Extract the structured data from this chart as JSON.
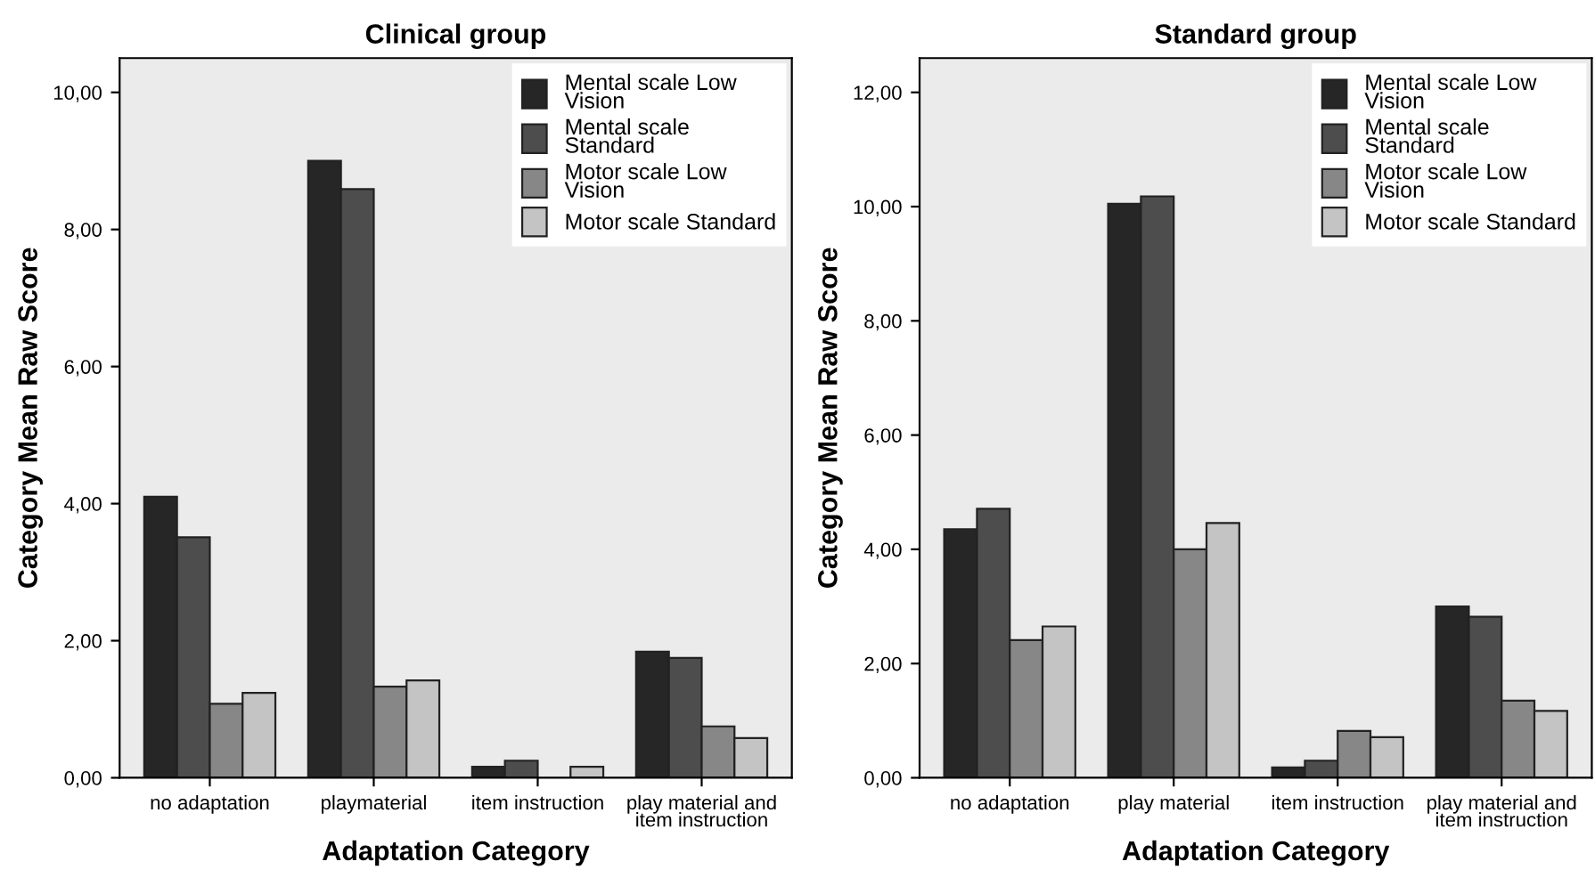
{
  "chart_data": [
    {
      "type": "bar",
      "title": "Clinical group",
      "xlabel": "Adaptation Category",
      "ylabel": "Category Mean Raw Score",
      "categories": [
        "no adaptation",
        "playmaterial",
        "item instruction",
        "play material and\nitem instruction"
      ],
      "series": [
        {
          "name": "Mental scale Low\nVision",
          "color": "#262626",
          "values": [
            4.1,
            9.0,
            0.16,
            1.84
          ]
        },
        {
          "name": "Mental scale\nStandard",
          "color": "#4d4d4d",
          "values": [
            3.51,
            8.59,
            0.25,
            1.75
          ]
        },
        {
          "name": "Motor scale Low\nVision",
          "color": "#878787",
          "values": [
            1.08,
            1.33,
            null,
            0.75
          ]
        },
        {
          "name": "Motor scale Standard",
          "color": "#c4c4c4",
          "values": [
            1.24,
            1.42,
            0.16,
            0.58
          ]
        }
      ],
      "ylim": [
        0,
        10.5
      ],
      "yticks": [
        {
          "value": 0,
          "label": "0,00"
        },
        {
          "value": 2,
          "label": "2,00"
        },
        {
          "value": 4,
          "label": "4,00"
        },
        {
          "value": 6,
          "label": "6,00"
        },
        {
          "value": 8,
          "label": "8,00"
        },
        {
          "value": 10,
          "label": "10,00"
        }
      ],
      "legend": "top right"
    },
    {
      "type": "bar",
      "title": "Standard group",
      "xlabel": "Adaptation Category",
      "ylabel": "Category Mean Raw Score",
      "categories": [
        "no adaptation",
        "play material",
        "item instruction",
        "play material and\nitem instruction"
      ],
      "series": [
        {
          "name": "Mental scale Low\nVision",
          "color": "#262626",
          "values": [
            4.35,
            10.05,
            0.18,
            3.0
          ]
        },
        {
          "name": "Mental scale\nStandard",
          "color": "#4d4d4d",
          "values": [
            4.71,
            10.18,
            0.3,
            2.82
          ]
        },
        {
          "name": "Motor scale Low\nVision",
          "color": "#878787",
          "values": [
            2.41,
            4.0,
            0.82,
            1.35
          ]
        },
        {
          "name": "Motor scale Standard",
          "color": "#c4c4c4",
          "values": [
            2.65,
            4.46,
            0.71,
            1.17
          ]
        }
      ],
      "ylim": [
        0,
        12.6
      ],
      "yticks": [
        {
          "value": 0,
          "label": "0,00"
        },
        {
          "value": 2,
          "label": "2,00"
        },
        {
          "value": 4,
          "label": "4,00"
        },
        {
          "value": 6,
          "label": "6,00"
        },
        {
          "value": 8,
          "label": "8,00"
        },
        {
          "value": 10,
          "label": "10,00"
        },
        {
          "value": 12,
          "label": "12,00"
        }
      ],
      "legend": "top right"
    }
  ]
}
